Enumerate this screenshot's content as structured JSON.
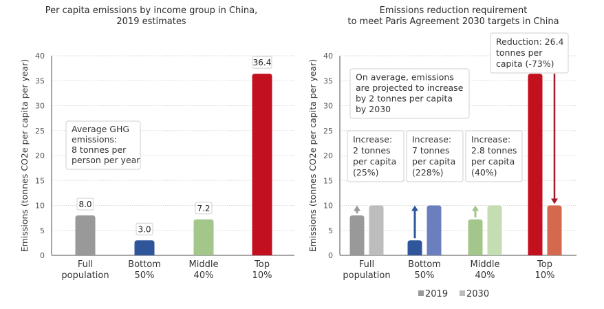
{
  "colors": {
    "full_2019": "#999999",
    "full_2030": "#bdbdbd",
    "bottom_2019": "#2f569b",
    "bottom_2030": "#6b7fbf",
    "middle_2019": "#a3c68b",
    "middle_2030": "#c5ddb3",
    "top_2019": "#c3101f",
    "top_2030": "#d4694e",
    "arrow_full": "#999999",
    "arrow_bottom": "#2f569b",
    "arrow_middle": "#a3c68b",
    "arrow_top": "#a3172a",
    "grid": "#d9d9d9",
    "axis": "#888888",
    "box_border": "#cfcfcf"
  },
  "chart_data": [
    {
      "type": "bar",
      "title": "Per capita emissions by income group in China, 2019 estimates",
      "title_lines": [
        "Per capita emissions by income group in China,",
        "2019 estimates"
      ],
      "categories": [
        "Full population",
        "Bottom 50%",
        "Middle 40%",
        "Top 10%"
      ],
      "category_lines": [
        [
          "Full",
          "population"
        ],
        [
          "Bottom",
          "50%"
        ],
        [
          "Middle",
          "40%"
        ],
        [
          "Top",
          "10%"
        ]
      ],
      "values": [
        8.0,
        3.0,
        7.2,
        36.4
      ],
      "value_labels": [
        "8.0",
        "3.0",
        "7.2",
        "36.4"
      ],
      "xlabel": "",
      "ylabel": "Emissions (tonnes CO2e per capita per year)",
      "ylim": [
        0,
        40
      ],
      "yticks": [
        0,
        5,
        10,
        15,
        20,
        25,
        30,
        35,
        40
      ],
      "grid": true,
      "annotations": [
        {
          "lines": [
            "Average GHG",
            "emissions:",
            "8 tonnes per",
            "person per year"
          ]
        }
      ]
    },
    {
      "type": "bar",
      "title": "Emissions reduction requirement to meet Paris Agreement 2030 targets in China",
      "title_lines": [
        "Emissions reduction requirement",
        "to meet Paris Agreement 2030 targets in China"
      ],
      "categories": [
        "Full population",
        "Bottom 50%",
        "Middle 40%",
        "Top 10%"
      ],
      "category_lines": [
        [
          "Full",
          "population"
        ],
        [
          "Bottom",
          "50%"
        ],
        [
          "Middle",
          "40%"
        ],
        [
          "Top",
          "10%"
        ]
      ],
      "series": [
        {
          "name": "2019",
          "values": [
            8.0,
            3.0,
            7.2,
            36.4
          ]
        },
        {
          "name": "2030",
          "values": [
            10.0,
            10.0,
            10.0,
            10.0
          ]
        }
      ],
      "xlabel": "",
      "ylabel": "Emissions (tonnes CO2e per capita per year)",
      "ylim": [
        0,
        40
      ],
      "yticks": [
        0,
        5,
        10,
        15,
        20,
        25,
        30,
        35,
        40
      ],
      "grid": true,
      "legend": {
        "position": "bottom",
        "entries": [
          "2019",
          "2030"
        ]
      },
      "annotations": [
        {
          "id": "average",
          "lines": [
            "On average, emissions",
            "are projected to increase",
            "by 2 tonnes per capita",
            "by 2030"
          ]
        },
        {
          "id": "full",
          "lines": [
            "Increase:",
            "2 tonnes",
            "per capita",
            "(25%)"
          ]
        },
        {
          "id": "bottom",
          "lines": [
            "Increase:",
            "7 tonnes",
            "per capita",
            "(228%)"
          ]
        },
        {
          "id": "middle",
          "lines": [
            "Increase:",
            "2.8 tonnes",
            "per capita",
            "(40%)"
          ]
        },
        {
          "id": "top",
          "lines": [
            "Reduction: 26.4",
            "tonnes per",
            "capita (-73%)"
          ]
        }
      ],
      "arrows": [
        {
          "category": "Full population",
          "from": 8.0,
          "to": 10.0,
          "direction": "up"
        },
        {
          "category": "Bottom 50%",
          "from": 3.0,
          "to": 10.0,
          "direction": "up"
        },
        {
          "category": "Middle 40%",
          "from": 7.2,
          "to": 10.0,
          "direction": "up"
        },
        {
          "category": "Top 10%",
          "from": 36.4,
          "to": 10.0,
          "direction": "down"
        }
      ]
    }
  ]
}
